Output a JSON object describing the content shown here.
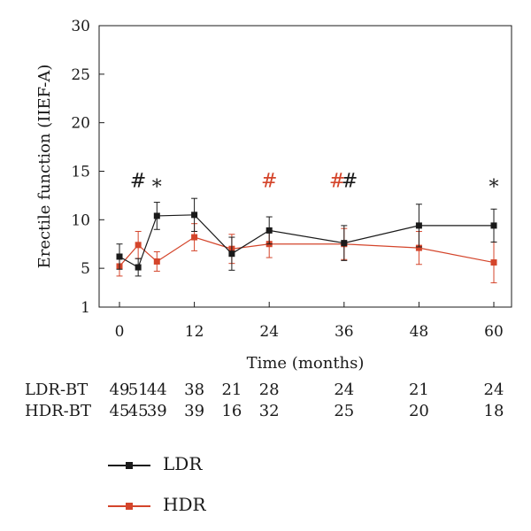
{
  "chart_data": {
    "type": "line",
    "title": "",
    "xlabel": "Time (months)",
    "ylabel": "Erectile function (IIEF-A)",
    "xlim": [
      -3,
      62
    ],
    "ylim": [
      1,
      30
    ],
    "x_ticks": [
      0,
      12,
      24,
      36,
      48,
      60
    ],
    "y_ticks": [
      1,
      5,
      10,
      15,
      20,
      25,
      30
    ],
    "series": [
      {
        "name": "LDR",
        "color": "#1a1a1a",
        "x": [
          0,
          3,
          6,
          12,
          18,
          24,
          36,
          48,
          60
        ],
        "y": [
          6.2,
          5.1,
          10.4,
          10.5,
          6.5,
          8.9,
          7.6,
          9.4,
          9.4
        ],
        "error": [
          1.3,
          0.9,
          1.4,
          1.7,
          1.7,
          1.4,
          1.8,
          2.2,
          1.7
        ]
      },
      {
        "name": "HDR",
        "color": "#d4452b",
        "x": [
          0,
          3,
          6,
          12,
          18,
          24,
          36,
          48,
          60
        ],
        "y": [
          5.2,
          7.4,
          5.7,
          8.2,
          7.0,
          7.5,
          7.5,
          7.1,
          5.6
        ],
        "error": [
          1.0,
          1.4,
          1.0,
          1.4,
          1.5,
          1.4,
          1.6,
          1.7,
          2.1
        ]
      }
    ],
    "annotations": [
      {
        "text": "#",
        "x": 3,
        "color": "#1a1a1a"
      },
      {
        "text": "*",
        "x": 6,
        "color": "#1a1a1a"
      },
      {
        "text": "#",
        "x": 24,
        "color": "#d4452b"
      },
      {
        "text": "#",
        "x": 34.9,
        "color": "#d4452b"
      },
      {
        "text": "#",
        "x": 36.9,
        "color": "#1a1a1a"
      },
      {
        "text": "*",
        "x": 60,
        "color": "#1a1a1a"
      }
    ],
    "annotation_level": 14.2,
    "grid": false,
    "legend_position": "bottom-left"
  },
  "risk_table": {
    "x": [
      0,
      3,
      6,
      12,
      18,
      24,
      36,
      48,
      60
    ],
    "rows": [
      {
        "label": "LDR-BT",
        "values": [
          "49",
          "51",
          "44",
          "38",
          "21",
          "28",
          "24",
          "21",
          "24"
        ]
      },
      {
        "label": "HDR-BT",
        "values": [
          "45",
          "45",
          "39",
          "39",
          "16",
          "32",
          "25",
          "20",
          "18"
        ]
      }
    ]
  },
  "legend": [
    {
      "label": "LDR",
      "color": "#1a1a1a"
    },
    {
      "label": "HDR",
      "color": "#d4452b"
    }
  ]
}
